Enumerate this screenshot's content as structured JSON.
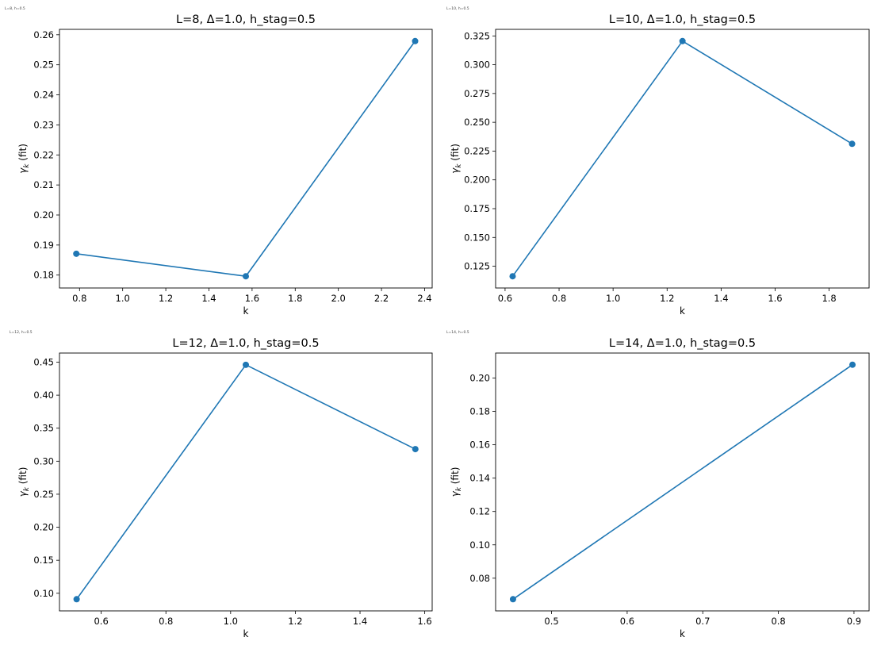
{
  "colors": {
    "series": "#1f77b4",
    "axes": "#000000",
    "background": "#ffffff"
  },
  "chart_data": [
    {
      "type": "line",
      "corner_label": "L=8, h=0.5",
      "title": "L=8, Δ=1.0, h_stag=0.5",
      "xlabel": "k",
      "ylabel": "γ_k (fit)",
      "ylabel_main": "γ",
      "ylabel_sub": "k",
      "ylabel_rest": " (fit)",
      "x": [
        0.785,
        1.571,
        2.356
      ],
      "y": [
        0.1871,
        0.1796,
        0.2579
      ],
      "xlim": [
        0.707,
        2.435
      ],
      "ylim": [
        0.1757,
        0.2618
      ],
      "xticks": [
        0.8,
        1.0,
        1.2,
        1.4,
        1.6,
        1.8,
        2.0,
        2.2,
        2.4
      ],
      "xtick_labels": [
        "0.8",
        "1.0",
        "1.2",
        "1.4",
        "1.6",
        "1.8",
        "2.0",
        "2.2",
        "2.4"
      ],
      "yticks": [
        0.18,
        0.19,
        0.2,
        0.21,
        0.22,
        0.23,
        0.24,
        0.25,
        0.26
      ],
      "ytick_labels": [
        "0.18",
        "0.19",
        "0.20",
        "0.21",
        "0.22",
        "0.23",
        "0.24",
        "0.25",
        "0.26"
      ],
      "grid": false,
      "markers": true
    },
    {
      "type": "line",
      "corner_label": "L=10, h=0.5",
      "title": "L=10, Δ=1.0, h_stag=0.5",
      "xlabel": "k",
      "ylabel": "γ_k (fit)",
      "ylabel_main": "γ",
      "ylabel_sub": "k",
      "ylabel_rest": " (fit)",
      "x": [
        0.628,
        1.257,
        1.885
      ],
      "y": [
        0.1163,
        0.3205,
        0.2313
      ],
      "xlim": [
        0.565,
        1.948
      ],
      "ylim": [
        0.1061,
        0.3307
      ],
      "xticks": [
        0.6,
        0.8,
        1.0,
        1.2,
        1.4,
        1.6,
        1.8
      ],
      "xtick_labels": [
        "0.6",
        "0.8",
        "1.0",
        "1.2",
        "1.4",
        "1.6",
        "1.8"
      ],
      "yticks": [
        0.125,
        0.15,
        0.175,
        0.2,
        0.225,
        0.25,
        0.275,
        0.3,
        0.325
      ],
      "ytick_labels": [
        "0.125",
        "0.150",
        "0.175",
        "0.200",
        "0.225",
        "0.250",
        "0.275",
        "0.300",
        "0.325"
      ],
      "grid": false,
      "markers": true
    },
    {
      "type": "line",
      "corner_label": "L=12, h=0.5",
      "title": "L=12, Δ=1.0, h_stag=0.5",
      "xlabel": "k",
      "ylabel": "γ_k (fit)",
      "ylabel_main": "γ",
      "ylabel_sub": "k",
      "ylabel_rest": " (fit)",
      "x": [
        0.524,
        1.047,
        1.571
      ],
      "y": [
        0.091,
        0.446,
        0.3183
      ],
      "xlim": [
        0.471,
        1.623
      ],
      "ylim": [
        0.0733,
        0.4638
      ],
      "xticks": [
        0.6,
        0.8,
        1.0,
        1.2,
        1.4,
        1.6
      ],
      "xtick_labels": [
        "0.6",
        "0.8",
        "1.0",
        "1.2",
        "1.4",
        "1.6"
      ],
      "yticks": [
        0.1,
        0.15,
        0.2,
        0.25,
        0.3,
        0.35,
        0.4,
        0.45
      ],
      "ytick_labels": [
        "0.10",
        "0.15",
        "0.20",
        "0.25",
        "0.30",
        "0.35",
        "0.40",
        "0.45"
      ],
      "grid": false,
      "markers": true
    },
    {
      "type": "line",
      "corner_label": "L=14, h=0.5",
      "title": "L=14, Δ=1.0, h_stag=0.5",
      "xlabel": "k",
      "ylabel": "γ_k (fit)",
      "ylabel_main": "γ",
      "ylabel_sub": "k",
      "ylabel_rest": " (fit)",
      "x": [
        0.449,
        0.898
      ],
      "y": [
        0.0674,
        0.208
      ],
      "xlim": [
        0.426,
        0.92
      ],
      "ylim": [
        0.0604,
        0.215
      ],
      "xticks": [
        0.5,
        0.6,
        0.7,
        0.8,
        0.9
      ],
      "xtick_labels": [
        "0.5",
        "0.6",
        "0.7",
        "0.8",
        "0.9"
      ],
      "yticks": [
        0.08,
        0.1,
        0.12,
        0.14,
        0.16,
        0.18,
        0.2
      ],
      "ytick_labels": [
        "0.08",
        "0.10",
        "0.12",
        "0.14",
        "0.16",
        "0.18",
        "0.20"
      ],
      "grid": false,
      "markers": true
    }
  ]
}
